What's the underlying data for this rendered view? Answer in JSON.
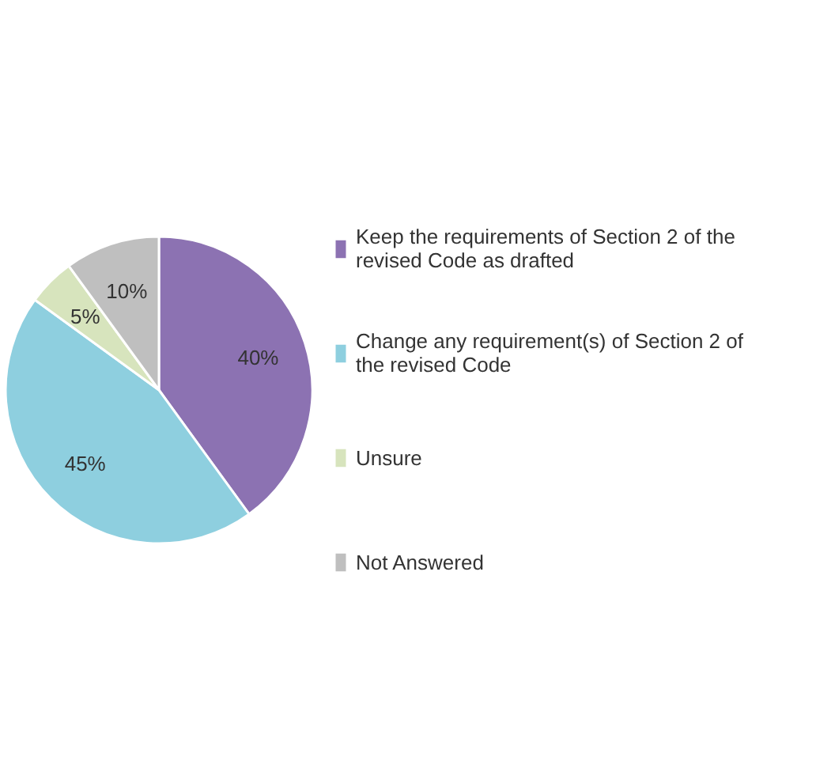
{
  "chart_data": {
    "type": "pie",
    "categories": [
      "Keep the requirements of Section 2 of the revised Code as drafted",
      "Change any requirement(s) of Section 2 of the revised Code",
      "Unsure",
      "Not Answered"
    ],
    "values": [
      40,
      45,
      5,
      10
    ],
    "value_labels": [
      "40%",
      "45%",
      "5%",
      "10%"
    ],
    "colors": [
      "#8c72b2",
      "#8ecfdf",
      "#d7e4bd",
      "#bfbfbf"
    ],
    "legend": "right"
  }
}
